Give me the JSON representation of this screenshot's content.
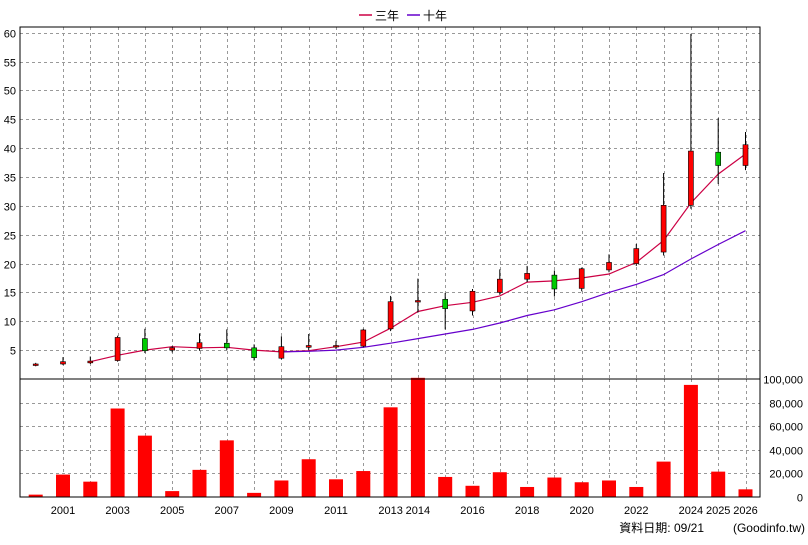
{
  "legend": {
    "items": [
      {
        "label": "三年",
        "color": "#cc0044"
      },
      {
        "label": "十年",
        "color": "#6600cc"
      }
    ]
  },
  "footer": {
    "date_text": "資料日期: 09/21",
    "source_text": "(Goodinfo.tw)"
  },
  "chart_data": [
    {
      "type": "candlestick",
      "title": "",
      "x_tick_labels": [
        "2001",
        "2003",
        "2005",
        "2007",
        "2009",
        "2011",
        "2013",
        "2014",
        "2016",
        "2018",
        "2020",
        "2022",
        "2024",
        "2025",
        "2026"
      ],
      "ylim": [
        0,
        61
      ],
      "y_ticks": [
        5,
        10,
        15,
        20,
        25,
        30,
        35,
        40,
        45,
        50,
        55,
        60
      ],
      "grid": true,
      "up_color": "#ff0000",
      "down_color": "#00cc00",
      "candles": [
        {
          "year": 2000,
          "open": 2.4,
          "close": 2.6,
          "high": 2.8,
          "low": 2.2
        },
        {
          "year": 2001,
          "open": 2.6,
          "close": 3.0,
          "high": 3.8,
          "low": 2.4
        },
        {
          "year": 2002,
          "open": 2.8,
          "close": 3.1,
          "high": 3.9,
          "low": 2.6
        },
        {
          "year": 2003,
          "open": 3.2,
          "close": 7.2,
          "high": 7.5,
          "low": 3.0
        },
        {
          "year": 2004,
          "open": 7.0,
          "close": 4.9,
          "high": 8.7,
          "low": 4.5
        },
        {
          "year": 2005,
          "open": 5.0,
          "close": 5.4,
          "high": 5.7,
          "low": 4.6
        },
        {
          "year": 2006,
          "open": 5.3,
          "close": 6.3,
          "high": 7.9,
          "low": 4.9
        },
        {
          "year": 2007,
          "open": 6.2,
          "close": 5.4,
          "high": 8.6,
          "low": 5.0
        },
        {
          "year": 2008,
          "open": 5.4,
          "close": 3.7,
          "high": 6.0,
          "low": 3.2
        },
        {
          "year": 2009,
          "open": 3.6,
          "close": 5.6,
          "high": 7.4,
          "low": 3.4
        },
        {
          "year": 2010,
          "open": 5.5,
          "close": 5.8,
          "high": 7.8,
          "low": 5.0
        },
        {
          "year": 2011,
          "open": 5.6,
          "close": 5.8,
          "high": 6.6,
          "low": 5.2
        },
        {
          "year": 2012,
          "open": 5.7,
          "close": 8.5,
          "high": 8.7,
          "low": 5.5
        },
        {
          "year": 2013,
          "open": 8.7,
          "close": 13.4,
          "high": 14.4,
          "low": 8.3
        },
        {
          "year": 2014,
          "open": 13.4,
          "close": 13.6,
          "high": 17.4,
          "low": 11.5
        },
        {
          "year": 2015,
          "open": 13.8,
          "close": 12.2,
          "high": 14.9,
          "low": 8.6
        },
        {
          "year": 2016,
          "open": 11.8,
          "close": 15.2,
          "high": 15.6,
          "low": 11.0
        },
        {
          "year": 2017,
          "open": 15.0,
          "close": 17.3,
          "high": 19.0,
          "low": 14.6
        },
        {
          "year": 2018,
          "open": 17.3,
          "close": 18.3,
          "high": 19.6,
          "low": 16.8
        },
        {
          "year": 2019,
          "open": 18.0,
          "close": 15.6,
          "high": 18.8,
          "low": 14.3
        },
        {
          "year": 2020,
          "open": 15.7,
          "close": 19.1,
          "high": 19.3,
          "low": 15.2
        },
        {
          "year": 2021,
          "open": 18.9,
          "close": 20.2,
          "high": 21.6,
          "low": 18.5
        },
        {
          "year": 2022,
          "open": 20.0,
          "close": 22.6,
          "high": 23.4,
          "low": 19.6
        },
        {
          "year": 2023,
          "open": 22.0,
          "close": 30.1,
          "high": 35.7,
          "low": 21.4
        },
        {
          "year": 2024,
          "open": 30.1,
          "close": 39.5,
          "high": 59.8,
          "low": 29.5
        },
        {
          "year": 2025,
          "open": 39.3,
          "close": 37.0,
          "high": 45.2,
          "low": 33.8
        },
        {
          "year": 2026,
          "open": 37.0,
          "close": 40.6,
          "high": 42.8,
          "low": 36.2
        }
      ],
      "series": [
        {
          "name": "三年",
          "color": "#cc0044",
          "points": [
            [
              2002,
              3.0
            ],
            [
              2003,
              4.1
            ],
            [
              2004,
              5.0
            ],
            [
              2005,
              5.6
            ],
            [
              2006,
              5.4
            ],
            [
              2007,
              5.5
            ],
            [
              2008,
              5.0
            ],
            [
              2009,
              4.7
            ],
            [
              2010,
              4.9
            ],
            [
              2011,
              5.6
            ],
            [
              2012,
              6.4
            ],
            [
              2013,
              8.8
            ],
            [
              2014,
              11.7
            ],
            [
              2015,
              12.7
            ],
            [
              2016,
              13.3
            ],
            [
              2017,
              14.4
            ],
            [
              2018,
              16.8
            ],
            [
              2019,
              17.0
            ],
            [
              2020,
              17.5
            ],
            [
              2021,
              18.2
            ],
            [
              2022,
              20.2
            ],
            [
              2023,
              24.0
            ],
            [
              2024,
              30.5
            ],
            [
              2025,
              35.5
            ],
            [
              2026,
              39.0
            ]
          ]
        },
        {
          "name": "十年",
          "color": "#6600cc",
          "points": [
            [
              2009,
              4.7
            ],
            [
              2010,
              4.8
            ],
            [
              2011,
              5.0
            ],
            [
              2012,
              5.5
            ],
            [
              2013,
              6.2
            ],
            [
              2014,
              7.0
            ],
            [
              2015,
              7.8
            ],
            [
              2016,
              8.6
            ],
            [
              2017,
              9.7
            ],
            [
              2018,
              11.0
            ],
            [
              2019,
              12.0
            ],
            [
              2020,
              13.4
            ],
            [
              2021,
              15.0
            ],
            [
              2022,
              16.4
            ],
            [
              2023,
              18.1
            ],
            [
              2024,
              20.8
            ],
            [
              2025,
              23.3
            ],
            [
              2026,
              25.7
            ]
          ]
        }
      ]
    },
    {
      "type": "bar",
      "title": "",
      "ylim": [
        0,
        100000
      ],
      "y_tick_labels": [
        "0",
        "20,000",
        "40,000",
        "60,000",
        "80,000",
        "100,000"
      ],
      "y_tick_values": [
        0,
        20000,
        40000,
        60000,
        80000,
        100000
      ],
      "grid": true,
      "bar_color": "#ff0000",
      "values": [
        {
          "year": 2000,
          "value": 2000
        },
        {
          "year": 2001,
          "value": 19000
        },
        {
          "year": 2002,
          "value": 13000
        },
        {
          "year": 2003,
          "value": 75000
        },
        {
          "year": 2004,
          "value": 52000
        },
        {
          "year": 2005,
          "value": 5000
        },
        {
          "year": 2006,
          "value": 23000
        },
        {
          "year": 2007,
          "value": 48000
        },
        {
          "year": 2008,
          "value": 3500
        },
        {
          "year": 2009,
          "value": 14000
        },
        {
          "year": 2010,
          "value": 32000
        },
        {
          "year": 2011,
          "value": 15000
        },
        {
          "year": 2012,
          "value": 22000
        },
        {
          "year": 2013,
          "value": 76000
        },
        {
          "year": 2014,
          "value": 101000
        },
        {
          "year": 2015,
          "value": 17000
        },
        {
          "year": 2016,
          "value": 9500
        },
        {
          "year": 2017,
          "value": 21000
        },
        {
          "year": 2018,
          "value": 8500
        },
        {
          "year": 2019,
          "value": 16500
        },
        {
          "year": 2020,
          "value": 12500
        },
        {
          "year": 2021,
          "value": 14000
        },
        {
          "year": 2022,
          "value": 8500
        },
        {
          "year": 2023,
          "value": 30000
        },
        {
          "year": 2024,
          "value": 95000
        },
        {
          "year": 2025,
          "value": 21500
        },
        {
          "year": 2026,
          "value": 6500
        }
      ]
    }
  ]
}
